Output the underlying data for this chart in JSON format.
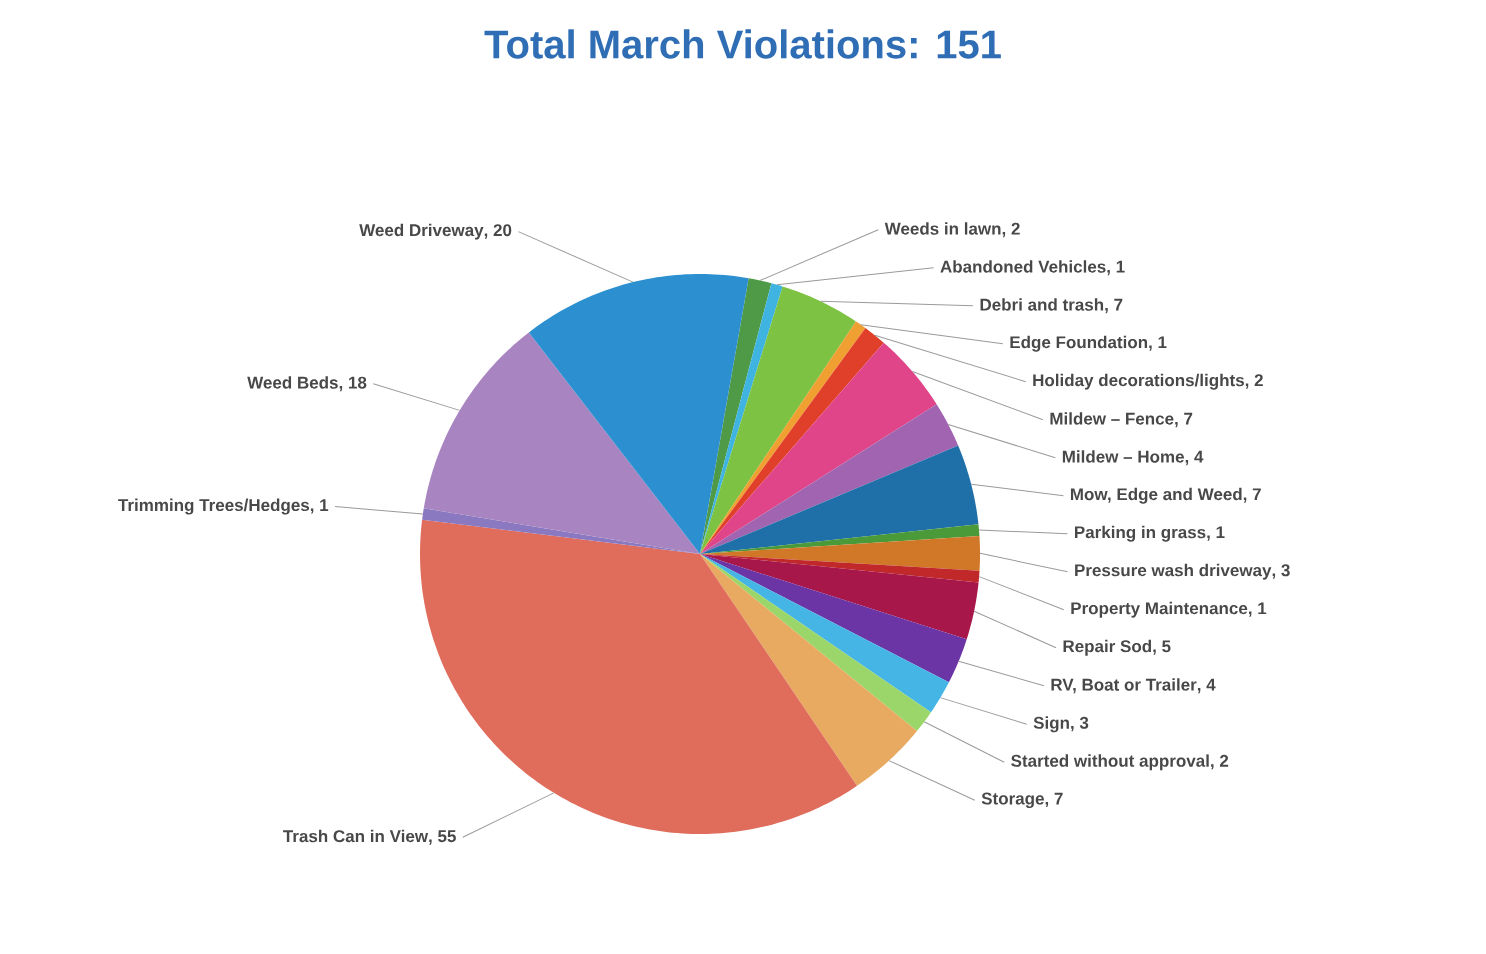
{
  "chart_data": {
    "type": "pie",
    "title": "Total March Violations: 151",
    "categories": [
      "Weeds in lawn",
      "Abandoned Vehicles",
      "Debri and trash",
      "Edge Foundation",
      "Holiday decorations/lights",
      "Mildew – Fence",
      "Mildew – Home",
      "Mow, Edge and Weed",
      "Parking in grass",
      "Pressure wash driveway",
      "Property Maintenance",
      "Repair Sod",
      "RV, Boat or Trailer",
      "Sign",
      "Started without approval",
      "Storage",
      "Trash Can in View",
      "Trimming Trees/Hedges",
      "Weed Beds",
      "Weed Driveway"
    ],
    "values": [
      2,
      1,
      7,
      1,
      2,
      7,
      4,
      7,
      1,
      3,
      1,
      5,
      4,
      3,
      2,
      7,
      55,
      1,
      18,
      20
    ],
    "value_labels": [
      ", 2",
      ", 1",
      ", 7",
      ", 1",
      ", 2",
      ", 7",
      ", 4",
      ", 7",
      ", 1",
      ", 3",
      ", 1",
      ", 5",
      ", 4",
      ", 3",
      ", 2",
      ", 7",
      ", 55",
      ", 1",
      ", 18",
      ", 20"
    ],
    "colors": [
      "#4f9a47",
      "#3fb4e0",
      "#7dc242",
      "#f0a030",
      "#e0402a",
      "#e0458a",
      "#a064b0",
      "#1f6fa8",
      "#4a9a3a",
      "#d07828",
      "#c0282a",
      "#a8174a",
      "#6b35a5",
      "#45b5e5",
      "#9ad66a",
      "#e8aa60",
      "#e06c5c",
      "#8a78c0",
      "#a884c0",
      "#2b8fd0"
    ]
  }
}
